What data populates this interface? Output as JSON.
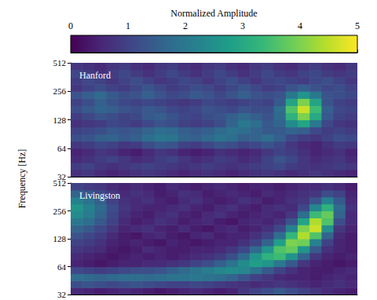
{
  "chart_data": {
    "type": "heatmap",
    "ylabel": "Frequency [Hz]",
    "log": "y",
    "tick_labels": "y",
    "xlim": [
      0,
      24
    ],
    "ylim": [
      32,
      512
    ],
    "yticks": [
      32,
      64,
      128,
      256,
      512
    ],
    "time_edges": [
      0,
      1,
      2,
      3,
      4,
      5,
      6,
      7,
      8,
      9,
      10,
      11,
      12,
      13,
      14,
      15,
      16,
      17,
      18,
      19,
      20,
      21,
      22,
      23,
      24
    ],
    "frequency_edges": [
      32,
      38.05,
      45.25,
      53.82,
      64,
      76.11,
      90.51,
      107.63,
      128,
      152.22,
      181.02,
      215.27,
      256,
      304.44,
      362.04,
      430.54,
      512
    ],
    "colorbar": {
      "label": "Normalized Amplitude",
      "range": [
        0,
        5
      ],
      "ticks": [
        0,
        1,
        2,
        3,
        4,
        5
      ]
    },
    "panels": [
      {
        "title": "Hanford",
        "cells": [
          [
            0.7,
            0.8,
            0.6,
            0.5,
            0.6,
            0.7,
            0.8,
            0.7,
            0.6,
            0.5,
            0.6,
            0.7,
            0.6,
            0.5,
            0.6,
            0.7,
            0.8,
            0.7,
            0.6,
            0.7,
            0.8,
            0.7,
            0.6,
            0.5
          ],
          [
            0.9,
            1.0,
            0.8,
            0.7,
            0.8,
            0.9,
            1.0,
            0.9,
            0.8,
            0.7,
            0.8,
            0.9,
            0.8,
            0.7,
            0.8,
            0.9,
            1.0,
            1.1,
            0.9,
            0.8,
            0.7,
            0.8,
            0.9,
            0.8
          ],
          [
            0.6,
            0.7,
            0.9,
            1.0,
            0.8,
            0.6,
            0.7,
            0.9,
            1.0,
            0.8,
            0.6,
            0.7,
            0.9,
            0.8,
            0.6,
            0.7,
            1.0,
            1.3,
            1.1,
            0.8,
            0.6,
            0.7,
            0.8,
            0.6
          ],
          [
            0.5,
            0.6,
            0.8,
            0.7,
            0.5,
            0.4,
            0.6,
            0.8,
            0.7,
            0.5,
            0.4,
            0.5,
            0.7,
            0.6,
            0.5,
            0.6,
            0.8,
            1.0,
            0.9,
            0.7,
            0.5,
            0.6,
            0.7,
            0.5
          ],
          [
            0.8,
            0.9,
            1.1,
            1.0,
            0.8,
            0.9,
            1.2,
            1.4,
            1.3,
            1.0,
            0.9,
            1.1,
            1.3,
            1.2,
            1.0,
            1.1,
            1.3,
            1.1,
            0.8,
            0.6,
            0.5,
            0.7,
            0.9,
            0.8
          ],
          [
            1.2,
            1.3,
            1.5,
            1.6,
            1.4,
            1.5,
            1.8,
            2.0,
            1.9,
            1.6,
            1.5,
            1.7,
            1.9,
            1.8,
            1.5,
            1.6,
            1.8,
            1.5,
            1.1,
            0.9,
            0.8,
            1.0,
            1.2,
            1.1
          ],
          [
            1.0,
            1.1,
            1.2,
            1.4,
            1.3,
            1.4,
            1.6,
            1.8,
            1.7,
            1.5,
            1.4,
            1.5,
            1.7,
            1.9,
            1.8,
            1.6,
            1.4,
            1.4,
            1.6,
            1.5,
            1.1,
            0.9,
            1.0,
            0.9
          ],
          [
            0.7,
            0.8,
            0.9,
            1.1,
            1.0,
            0.9,
            1.1,
            1.3,
            1.2,
            1.0,
            0.9,
            1.0,
            1.2,
            1.6,
            2.0,
            1.8,
            1.4,
            1.6,
            2.4,
            2.9,
            2.0,
            1.1,
            0.8,
            0.7
          ],
          [
            0.9,
            1.1,
            1.3,
            1.2,
            1.0,
            1.1,
            1.4,
            1.5,
            1.3,
            1.1,
            1.0,
            1.2,
            1.3,
            1.5,
            1.7,
            1.5,
            1.3,
            1.7,
            3.2,
            4.0,
            3.0,
            1.4,
            1.0,
            0.9
          ],
          [
            1.2,
            1.4,
            1.6,
            1.5,
            1.3,
            1.2,
            1.4,
            1.3,
            1.1,
            1.0,
            1.1,
            1.3,
            1.2,
            1.1,
            1.3,
            1.2,
            1.2,
            1.8,
            3.6,
            4.6,
            3.4,
            1.5,
            1.1,
            1.0
          ],
          [
            1.0,
            1.2,
            1.5,
            1.3,
            1.1,
            1.0,
            1.1,
            1.0,
            0.9,
            0.8,
            0.9,
            1.1,
            1.0,
            0.9,
            1.0,
            1.1,
            1.0,
            1.4,
            2.9,
            4.0,
            2.9,
            1.3,
            1.0,
            0.9
          ],
          [
            1.3,
            1.5,
            1.7,
            1.4,
            1.2,
            1.3,
            1.5,
            1.3,
            1.1,
            1.2,
            1.4,
            1.3,
            1.1,
            1.3,
            1.5,
            1.3,
            1.2,
            1.3,
            2.0,
            2.6,
            2.0,
            1.3,
            1.2,
            1.1
          ],
          [
            0.8,
            1.0,
            1.2,
            1.0,
            0.9,
            1.1,
            1.3,
            1.1,
            0.9,
            1.0,
            1.2,
            1.1,
            0.9,
            1.1,
            1.3,
            1.1,
            0.9,
            1.0,
            1.3,
            1.5,
            1.3,
            1.1,
            1.2,
            1.0
          ],
          [
            0.9,
            1.1,
            1.0,
            0.8,
            1.0,
            1.2,
            1.0,
            0.8,
            0.9,
            1.1,
            1.0,
            0.8,
            1.0,
            1.2,
            1.0,
            0.8,
            1.0,
            1.1,
            1.0,
            0.9,
            1.1,
            1.2,
            1.0,
            0.8
          ],
          [
            1.1,
            0.9,
            0.7,
            0.9,
            1.1,
            0.9,
            0.7,
            0.9,
            1.1,
            0.9,
            0.7,
            0.9,
            1.1,
            0.9,
            0.7,
            0.9,
            1.1,
            0.9,
            0.8,
            1.0,
            1.1,
            0.9,
            0.8,
            0.9
          ],
          [
            0.8,
            0.7,
            0.6,
            0.8,
            0.9,
            0.7,
            0.6,
            0.8,
            0.9,
            0.7,
            0.6,
            0.8,
            0.9,
            0.7,
            0.6,
            0.8,
            0.9,
            0.7,
            0.6,
            0.8,
            0.9,
            0.7,
            0.6,
            0.8
          ]
        ]
      },
      {
        "title": "Livingston",
        "cells": [
          [
            0.6,
            0.5,
            0.4,
            0.5,
            0.6,
            0.5,
            0.4,
            0.3,
            0.4,
            0.5,
            0.6,
            0.5,
            0.4,
            0.5,
            0.8,
            1.0,
            1.2,
            1.4,
            1.2,
            1.0,
            0.8,
            0.6,
            0.5,
            0.4
          ],
          [
            1.2,
            1.3,
            1.2,
            1.1,
            1.2,
            1.3,
            1.2,
            1.1,
            1.0,
            1.0,
            1.1,
            1.0,
            0.9,
            0.8,
            0.7,
            0.6,
            0.7,
            0.8,
            0.7,
            0.6,
            0.5,
            0.6,
            0.7,
            0.6
          ],
          [
            1.8,
            1.7,
            1.6,
            1.7,
            1.8,
            1.8,
            1.7,
            1.8,
            1.9,
            1.9,
            2.0,
            1.9,
            1.8,
            1.6,
            1.3,
            1.0,
            0.8,
            0.6,
            0.5,
            0.5,
            0.4,
            0.5,
            0.6,
            0.5
          ],
          [
            1.1,
            1.0,
            0.9,
            1.0,
            1.1,
            1.2,
            1.2,
            1.3,
            1.5,
            1.7,
            1.9,
            2.1,
            2.3,
            2.4,
            2.3,
            1.9,
            1.4,
            1.0,
            0.7,
            0.5,
            0.4,
            0.4,
            0.5,
            0.6
          ],
          [
            0.5,
            0.4,
            0.3,
            0.4,
            0.5,
            0.5,
            0.6,
            0.6,
            0.7,
            0.8,
            1.0,
            1.2,
            1.5,
            1.9,
            2.4,
            2.8,
            2.6,
            2.0,
            1.4,
            0.8,
            0.5,
            0.4,
            0.3,
            0.4
          ],
          [
            0.6,
            0.5,
            0.4,
            0.3,
            0.4,
            0.5,
            0.4,
            0.5,
            0.4,
            0.5,
            0.6,
            0.7,
            0.9,
            1.2,
            1.7,
            2.6,
            3.2,
            3.4,
            2.6,
            1.6,
            0.8,
            0.5,
            0.4,
            0.5
          ],
          [
            0.8,
            0.7,
            0.6,
            0.4,
            0.3,
            0.4,
            0.6,
            0.5,
            0.4,
            0.4,
            0.5,
            0.5,
            0.6,
            0.8,
            1.1,
            1.7,
            2.6,
            3.6,
            3.8,
            2.6,
            1.4,
            0.7,
            0.5,
            0.4
          ],
          [
            1.0,
            0.9,
            0.7,
            0.5,
            0.4,
            0.5,
            0.4,
            0.3,
            0.5,
            0.4,
            0.3,
            0.4,
            0.5,
            0.5,
            0.7,
            1.0,
            1.6,
            2.8,
            4.0,
            3.9,
            2.2,
            1.0,
            0.5,
            0.4
          ],
          [
            1.3,
            1.1,
            0.9,
            0.6,
            0.4,
            0.3,
            0.5,
            0.6,
            0.4,
            0.3,
            0.5,
            0.6,
            0.4,
            0.5,
            0.5,
            0.7,
            1.0,
            1.8,
            3.3,
            4.4,
            3.6,
            1.6,
            0.6,
            0.4
          ],
          [
            1.6,
            1.4,
            1.1,
            0.8,
            0.5,
            0.6,
            0.7,
            0.5,
            0.4,
            0.6,
            0.4,
            0.3,
            0.5,
            0.6,
            0.4,
            0.5,
            0.7,
            1.1,
            2.2,
            4.0,
            4.6,
            2.5,
            0.8,
            0.5
          ],
          [
            2.0,
            1.8,
            1.4,
            1.0,
            0.6,
            0.4,
            0.5,
            0.7,
            0.6,
            0.4,
            0.5,
            0.6,
            0.4,
            0.3,
            0.5,
            0.6,
            0.5,
            0.7,
            1.3,
            2.9,
            4.4,
            3.6,
            1.2,
            0.6
          ],
          [
            2.4,
            2.1,
            1.6,
            1.1,
            0.7,
            0.5,
            0.4,
            0.6,
            0.7,
            0.5,
            0.4,
            0.6,
            0.7,
            0.5,
            0.4,
            0.5,
            0.6,
            0.5,
            0.8,
            1.8,
            3.4,
            3.8,
            1.6,
            0.6
          ],
          [
            2.6,
            2.2,
            1.7,
            1.2,
            0.8,
            0.6,
            0.5,
            0.5,
            0.6,
            0.7,
            0.5,
            0.4,
            0.6,
            0.7,
            0.5,
            0.4,
            0.6,
            0.7,
            0.6,
            1.1,
            2.3,
            3.2,
            1.7,
            0.7
          ],
          [
            2.2,
            1.9,
            1.5,
            1.0,
            0.7,
            0.6,
            0.7,
            0.5,
            0.4,
            0.6,
            0.7,
            0.5,
            0.4,
            0.5,
            0.7,
            0.6,
            0.4,
            0.5,
            0.7,
            0.8,
            1.3,
            2.2,
            1.4,
            0.6
          ],
          [
            1.6,
            1.4,
            1.1,
            0.8,
            0.6,
            0.7,
            0.6,
            0.4,
            0.5,
            0.7,
            0.6,
            0.4,
            0.5,
            0.6,
            0.5,
            0.4,
            0.6,
            0.5,
            0.6,
            0.7,
            0.8,
            1.2,
            1.0,
            0.5
          ],
          [
            1.0,
            0.9,
            0.8,
            0.6,
            0.5,
            0.6,
            0.5,
            0.4,
            0.6,
            0.5,
            0.4,
            0.5,
            0.6,
            0.5,
            0.4,
            0.5,
            0.5,
            0.4,
            0.5,
            0.6,
            0.6,
            0.7,
            0.6,
            0.4
          ]
        ]
      }
    ]
  }
}
